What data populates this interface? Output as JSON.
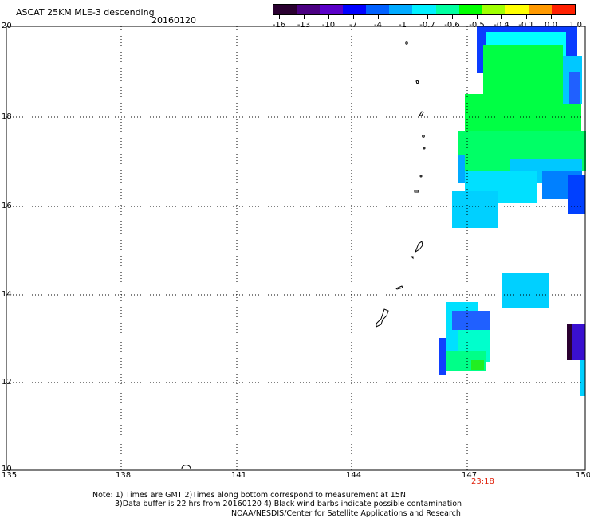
{
  "header": {
    "title": "ASCAT 25KM MLE-3 descending",
    "date": "20160120"
  },
  "colorbar": {
    "labels": [
      "-16",
      "-13",
      "-10",
      "-7",
      "-4",
      "-1",
      "-0.7",
      "-0.6",
      "-0.5",
      "-0.4",
      "-0.1",
      "0.0",
      "1.0"
    ],
    "colors": [
      "#2a0030",
      "#4b0082",
      "#5a00c8",
      "#0000ff",
      "#0060ff",
      "#00aaff",
      "#00f0ff",
      "#00ffa0",
      "#00ff00",
      "#a0ff00",
      "#ffff00",
      "#ff9900",
      "#ff2000"
    ]
  },
  "axes": {
    "lon_labels": [
      "135",
      "138",
      "141",
      "144",
      "147",
      "150"
    ],
    "lat_labels": [
      "20",
      "18",
      "16",
      "14",
      "12",
      "10"
    ]
  },
  "timestamp": "23:18",
  "notes": {
    "line1": "Note: 1) Times are GMT 2)Times along bottom correspond to measurement at 15N",
    "line2": "3)Data buffer is 22 hrs from 20160120 4) Black wind barbs indicate possible contamination",
    "line3": "NOAA/NESDIS/Center for Satellite Applications and Research"
  }
}
